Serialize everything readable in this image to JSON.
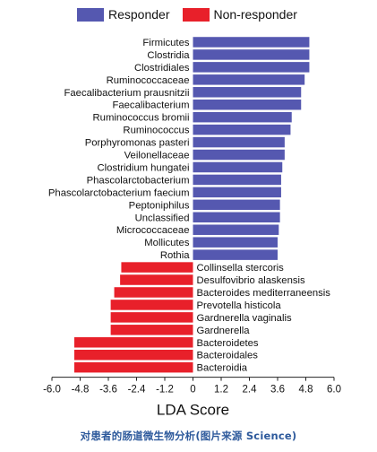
{
  "chart_data": {
    "type": "bar",
    "orientation": "horizontal",
    "title": "",
    "xlabel": "LDA Score",
    "ylabel": "",
    "xlim": [
      -6.0,
      6.0
    ],
    "xticks": [
      "-6.0",
      "-4.8",
      "-3.6",
      "-2.4",
      "-1.2",
      "0",
      "1.2",
      "2.4",
      "3.6",
      "4.8",
      "6.0"
    ],
    "legend_position": "top",
    "colors": {
      "Responder": "#5558b0",
      "Non-responder": "#e8202a"
    },
    "series": [
      {
        "name": "Responder",
        "categories": [
          "Firmicutes",
          "Clostridia",
          "Clostridiales",
          "Ruminococcaceae",
          "Faecalibacterium prausnitzii",
          "Faecalibacterium",
          "Ruminococcus bromii",
          "Ruminococcus",
          "Porphyromonas pasteri",
          "Veilonellaceae",
          "Clostridium hungatei",
          "Phascolarctobacterium",
          "Phascolarctobacterium faecium",
          "Peptoniphilus",
          "Unclassified",
          "Micrococcaceae",
          "Mollicutes",
          "Rothia"
        ],
        "values": [
          4.95,
          4.95,
          4.95,
          4.75,
          4.6,
          4.6,
          4.2,
          4.15,
          3.9,
          3.9,
          3.8,
          3.75,
          3.75,
          3.7,
          3.7,
          3.65,
          3.6,
          3.6
        ]
      },
      {
        "name": "Non-responder",
        "categories": [
          "Collinsella stercoris",
          "Desulfovibrio alaskensis",
          "Bacteroides mediterraneensis",
          "Prevotella histicola",
          "Gardnerella vaginalis",
          "Gardnerella",
          "Bacteroidetes",
          "Bacteroidales",
          "Bacteroidia"
        ],
        "values": [
          -3.05,
          -3.1,
          -3.35,
          -3.5,
          -3.5,
          -3.5,
          -5.05,
          -5.05,
          -5.05
        ]
      }
    ]
  },
  "caption": "对患者的肠道微生物分析(图片来源 Science)"
}
